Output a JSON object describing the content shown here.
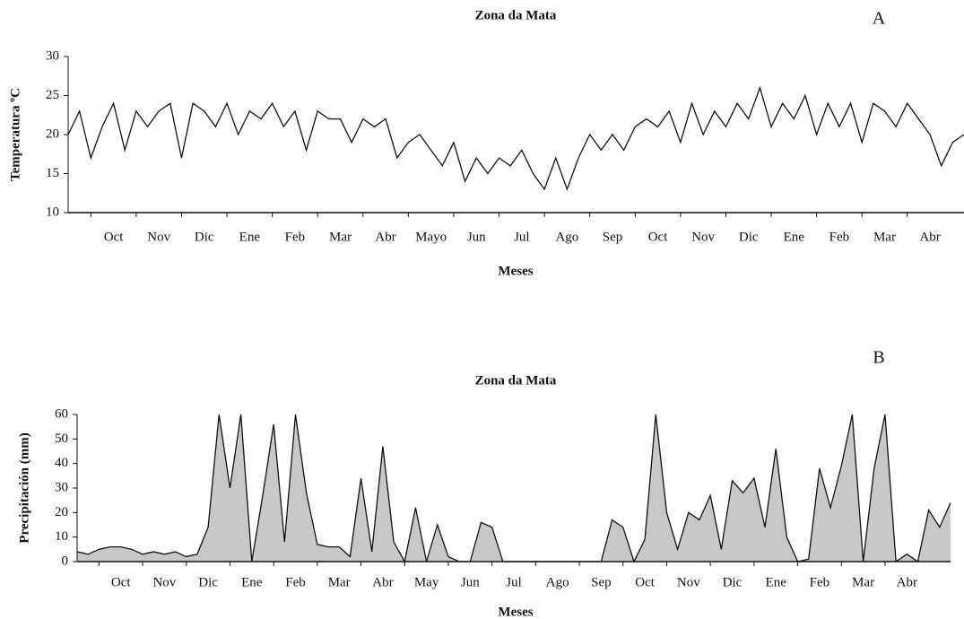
{
  "chart_data": [
    {
      "type": "line",
      "title": "Zona da Mata",
      "panel": "A",
      "x_label": "Meses",
      "y_label": "Temperatura ºC",
      "categories": [
        null,
        null,
        null,
        null,
        "Oct",
        null,
        null,
        null,
        "Nov",
        null,
        null,
        null,
        "Dic",
        null,
        null,
        null,
        "Ene",
        null,
        null,
        null,
        "Feb",
        null,
        null,
        null,
        "Mar",
        null,
        null,
        null,
        "Abr",
        null,
        null,
        null,
        "Mayo",
        null,
        null,
        null,
        "Jun",
        null,
        null,
        null,
        "Jul",
        null,
        null,
        null,
        "Ago",
        null,
        null,
        null,
        "Sep",
        null,
        null,
        null,
        "Oct",
        null,
        null,
        null,
        "Nov",
        null,
        null,
        null,
        "Dic",
        null,
        null,
        null,
        "Ene",
        null,
        null,
        null,
        "Feb",
        null,
        null,
        null,
        "Mar",
        null,
        null,
        null,
        "Abr",
        null,
        null,
        null
      ],
      "values": [
        20,
        23,
        17,
        21,
        24,
        18,
        23,
        21,
        23,
        24,
        17,
        24,
        23,
        21,
        24,
        20,
        23,
        22,
        24,
        21,
        23,
        18,
        23,
        22,
        22,
        19,
        22,
        21,
        22,
        17,
        19,
        20,
        18,
        16,
        19,
        14,
        17,
        15,
        17,
        16,
        18,
        15,
        13,
        17,
        13,
        17,
        20,
        18,
        20,
        18,
        21,
        22,
        21,
        23,
        19,
        24,
        20,
        23,
        21,
        24,
        22,
        26,
        21,
        24,
        22,
        25,
        20,
        24,
        21,
        24,
        19,
        24,
        23,
        21,
        24,
        22,
        20,
        16,
        19,
        20
      ],
      "color": "#111111",
      "ylim": [
        10,
        30
      ],
      "yticks": [
        10,
        15,
        20,
        25,
        30
      ]
    },
    {
      "type": "area",
      "title": "Zona da Mata",
      "panel": "B",
      "x_label": "Meses",
      "y_label": "Precipitación (mm)",
      "categories": [
        null,
        null,
        null,
        null,
        "Oct",
        null,
        null,
        null,
        "Nov",
        null,
        null,
        null,
        "Dic",
        null,
        null,
        null,
        "Ene",
        null,
        null,
        null,
        "Feb",
        null,
        null,
        null,
        "Mar",
        null,
        null,
        null,
        "Abr",
        null,
        null,
        null,
        "May",
        null,
        null,
        null,
        "Jun",
        null,
        null,
        null,
        "Jul",
        null,
        null,
        null,
        "Ago",
        null,
        null,
        null,
        "Sep",
        null,
        null,
        null,
        "Oct",
        null,
        null,
        null,
        "Nov",
        null,
        null,
        null,
        "Dic",
        null,
        null,
        null,
        "Ene",
        null,
        null,
        null,
        "Feb",
        null,
        null,
        null,
        "Mar",
        null,
        null,
        null,
        "Abr",
        null,
        null,
        null,
        null
      ],
      "values": [
        4,
        3,
        5,
        6,
        6,
        5,
        3,
        4,
        3,
        4,
        2,
        3,
        14,
        60,
        30,
        60,
        0,
        27,
        56,
        8,
        60,
        28,
        7,
        6,
        6,
        2,
        34,
        4,
        47,
        8,
        0,
        22,
        0,
        15,
        2,
        0,
        0,
        16,
        14,
        0,
        0,
        0,
        0,
        0,
        0,
        0,
        0,
        0,
        0,
        17,
        14,
        0,
        9,
        60,
        20,
        5,
        20,
        17,
        27,
        5,
        33,
        28,
        34,
        14,
        46,
        10,
        0,
        1,
        38,
        22,
        39,
        60,
        0,
        38,
        60,
        0,
        3,
        0,
        21,
        14,
        24
      ],
      "color": "#111111",
      "fill": "#c8c8c8",
      "ylim": [
        0,
        60
      ],
      "yticks": [
        0,
        10,
        20,
        30,
        40,
        50,
        60
      ]
    }
  ]
}
